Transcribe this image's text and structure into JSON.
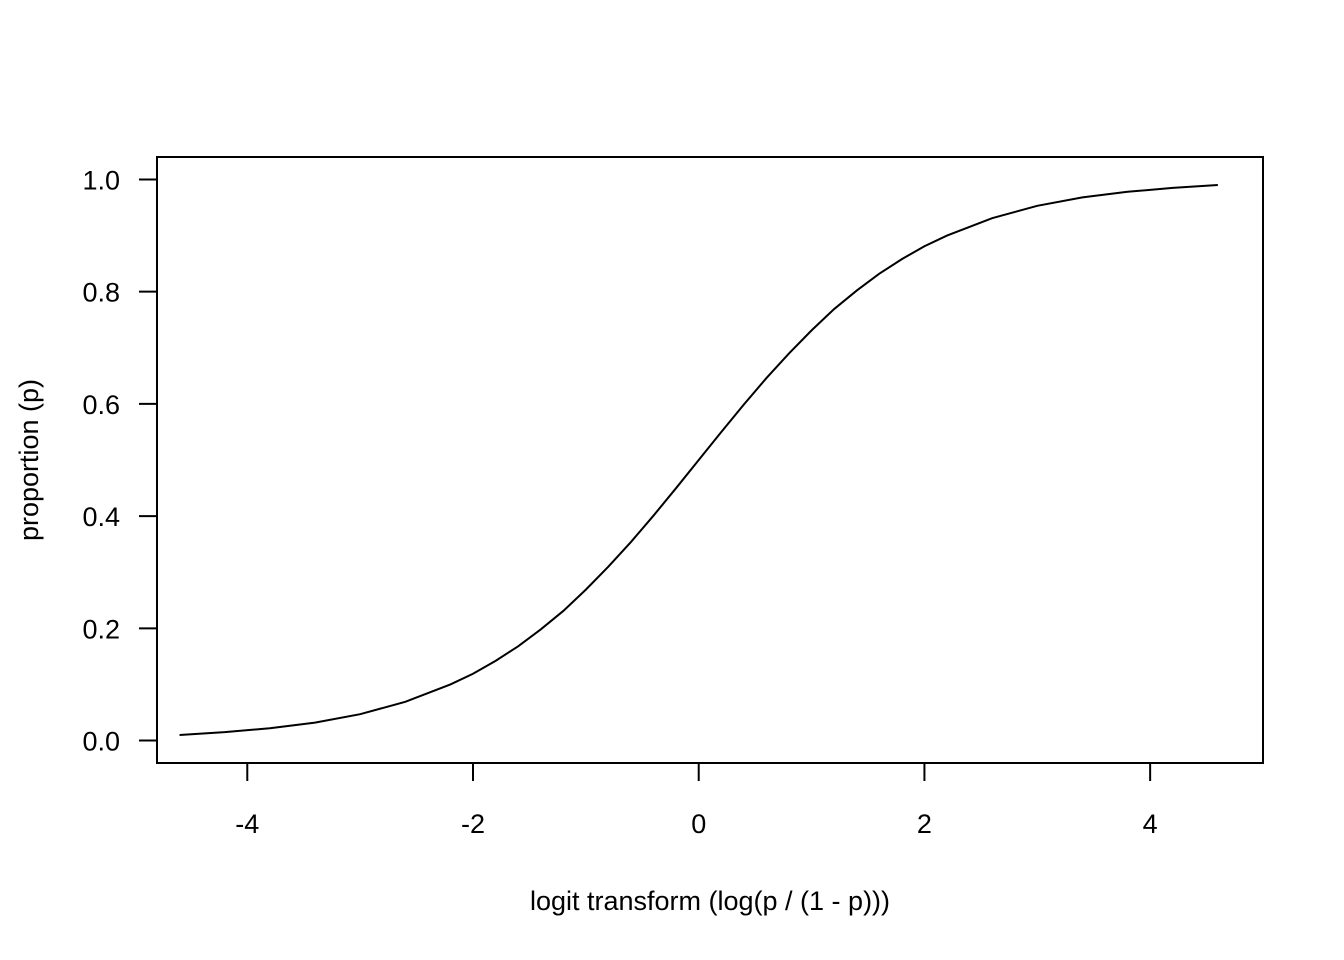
{
  "chart_data": {
    "type": "line",
    "title": "",
    "xlabel": "logit transform (log(p / (1 - p)))",
    "ylabel": "proportion (p)",
    "xlim": [
      -4.8,
      5.0
    ],
    "ylim": [
      -0.04,
      1.04
    ],
    "x_ticks": [
      -4,
      -2,
      0,
      2,
      4
    ],
    "x_tick_labels": [
      "-4",
      "-2",
      "0",
      "2",
      "4"
    ],
    "y_ticks": [
      0.0,
      0.2,
      0.4,
      0.6,
      0.8,
      1.0
    ],
    "y_tick_labels": [
      "0.0",
      "0.2",
      "0.4",
      "0.6",
      "0.8",
      "1.0"
    ],
    "grid": false,
    "legend": "none",
    "line_color": "#000000",
    "series": [
      {
        "x": [
          -4.6,
          -4.2,
          -3.8,
          -3.4,
          -3.0,
          -2.6,
          -2.2,
          -2.0,
          -1.8,
          -1.6,
          -1.4,
          -1.2,
          -1.0,
          -0.8,
          -0.6,
          -0.4,
          -0.2,
          0.0,
          0.2,
          0.4,
          0.6,
          0.8,
          1.0,
          1.2,
          1.4,
          1.6,
          1.8,
          2.0,
          2.2,
          2.6,
          3.0,
          3.4,
          3.8,
          4.2,
          4.6
        ],
        "values": [
          0.01,
          0.015,
          0.022,
          0.032,
          0.047,
          0.069,
          0.1,
          0.119,
          0.142,
          0.168,
          0.198,
          0.231,
          0.269,
          0.31,
          0.354,
          0.401,
          0.45,
          0.5,
          0.55,
          0.599,
          0.646,
          0.69,
          0.731,
          0.769,
          0.802,
          0.832,
          0.858,
          0.881,
          0.9,
          0.931,
          0.953,
          0.968,
          0.978,
          0.985,
          0.99
        ]
      }
    ]
  }
}
